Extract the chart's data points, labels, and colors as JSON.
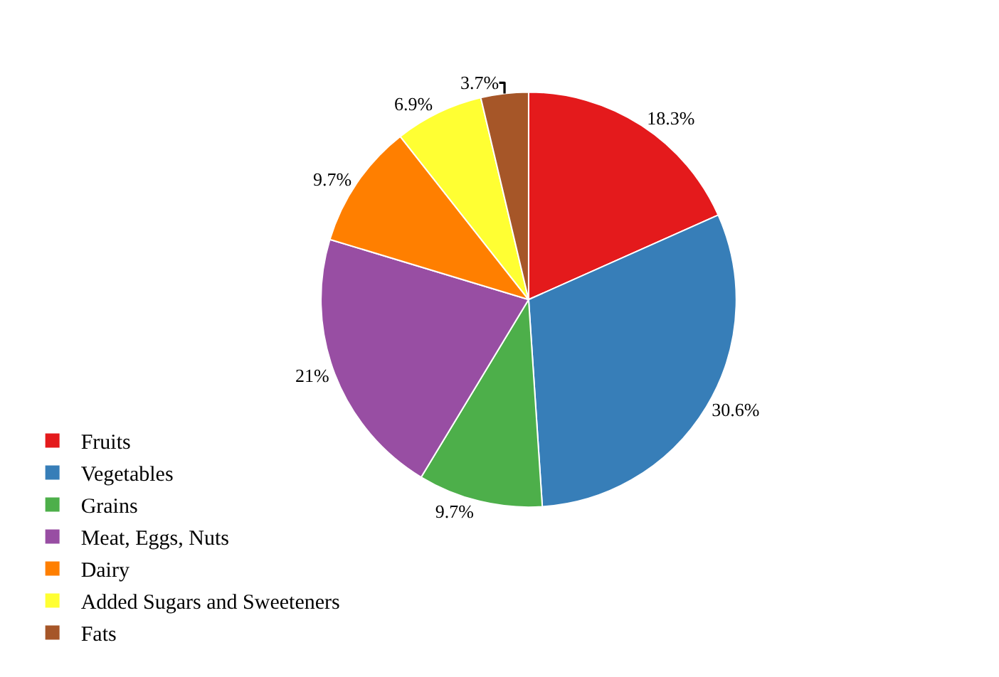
{
  "chart_data": {
    "type": "pie",
    "categories": [
      "Fruits",
      "Vegetables",
      "Grains",
      "Meat, Eggs, Nuts",
      "Dairy",
      "Added Sugars and Sweeteners",
      "Fats"
    ],
    "values": [
      18.3,
      30.6,
      9.7,
      21,
      9.7,
      6.9,
      3.7
    ],
    "value_labels": [
      "18.3%",
      "30.6%",
      "9.7%",
      "21%",
      "9.7%",
      "6.9%",
      "3.7%"
    ],
    "colors": [
      "#e41a1c",
      "#377eb8",
      "#4daf4a",
      "#984ea3",
      "#ff7f00",
      "#ffff33",
      "#a65628"
    ],
    "legend": "bottom left"
  }
}
